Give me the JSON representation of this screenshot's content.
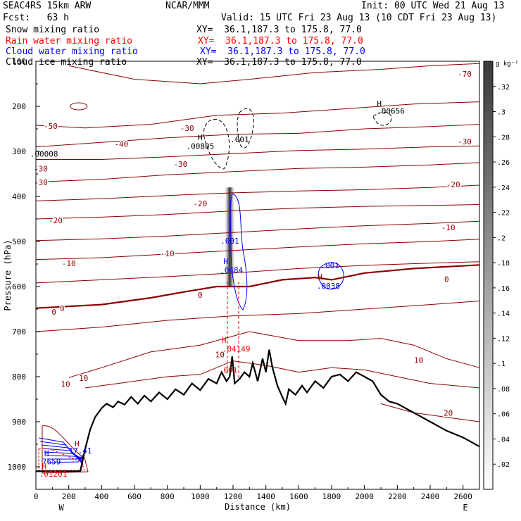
{
  "header": {
    "model": "SEAC4RS 15km ARW",
    "org": "NCAR/MMM",
    "init": "Init: 00 UTC Wed 21 Aug 13",
    "fcst": "Fcst:   63 h",
    "valid": "Valid: 15 UTC Fri 23 Aug 13 (10 CDT Fri 23 Aug 13)"
  },
  "fields": [
    {
      "name": "Snow mixing ratio",
      "xy": "",
      "color": "#000000"
    },
    {
      "name": "Rain water mixing ratio",
      "xy": "XY=  36.1,187.3 to 175.8, 77.0",
      "color": "#ff0000"
    },
    {
      "name": "Cloud water mixing ratio",
      "xy": "XY=  36.1,187.3 to 175.8, 77.0",
      "color": "#0000ff"
    },
    {
      "name": "Cloud ice mixing ratio",
      "xy": "XY=  36.1,187.3 to 175.8, 77.0",
      "color": "#000000"
    }
  ],
  "snow_xy": "XY=  36.1,187.3 to 175.8, 77.0",
  "colorbar": {
    "units": "g kg⁻¹",
    "ticks": [
      ".32",
      ".3",
      ".28",
      ".26",
      ".24",
      ".22",
      ".2",
      ".18",
      ".16",
      ".14",
      ".12",
      ".1",
      ".08",
      ".06",
      ".04",
      ".02"
    ]
  },
  "chart_data": {
    "type": "cross-section",
    "xlabel": "Distance (km)",
    "ylabel": "Pressure (hPa)",
    "xlim": [
      0,
      2700
    ],
    "ylim": [
      1050,
      100
    ],
    "x_ticks": [
      0,
      200,
      400,
      600,
      800,
      1000,
      1200,
      1400,
      1600,
      1800,
      2000,
      2200,
      2400,
      2600
    ],
    "y_ticks": [
      100,
      200,
      300,
      400,
      500,
      600,
      700,
      800,
      900,
      1000
    ],
    "y_tick_labels": [
      "100",
      "200",
      "300",
      "400",
      "500",
      "600",
      "700",
      "800",
      "900",
      "1000"
    ],
    "endpoint_labels": {
      "left": "W",
      "right": "E"
    },
    "terrain": [
      [
        0,
        1010
      ],
      [
        270,
        1010
      ],
      [
        300,
        960
      ],
      [
        330,
        918
      ],
      [
        360,
        890
      ],
      [
        400,
        870
      ],
      [
        430,
        860
      ],
      [
        470,
        868
      ],
      [
        500,
        855
      ],
      [
        540,
        862
      ],
      [
        580,
        845
      ],
      [
        620,
        860
      ],
      [
        660,
        842
      ],
      [
        700,
        855
      ],
      [
        750,
        835
      ],
      [
        800,
        850
      ],
      [
        850,
        828
      ],
      [
        900,
        840
      ],
      [
        950,
        815
      ],
      [
        1000,
        830
      ],
      [
        1050,
        805
      ],
      [
        1100,
        815
      ],
      [
        1130,
        790
      ],
      [
        1160,
        810
      ],
      [
        1180,
        800
      ],
      [
        1195,
        755
      ],
      [
        1210,
        815
      ],
      [
        1240,
        805
      ],
      [
        1270,
        790
      ],
      [
        1300,
        800
      ],
      [
        1320,
        770
      ],
      [
        1350,
        810
      ],
      [
        1380,
        760
      ],
      [
        1400,
        790
      ],
      [
        1420,
        740
      ],
      [
        1440,
        780
      ],
      [
        1470,
        820
      ],
      [
        1500,
        845
      ],
      [
        1520,
        860
      ],
      [
        1540,
        828
      ],
      [
        1580,
        840
      ],
      [
        1620,
        820
      ],
      [
        1650,
        835
      ],
      [
        1700,
        810
      ],
      [
        1750,
        825
      ],
      [
        1800,
        800
      ],
      [
        1850,
        795
      ],
      [
        1900,
        810
      ],
      [
        1950,
        790
      ],
      [
        2000,
        800
      ],
      [
        2050,
        810
      ],
      [
        2100,
        840
      ],
      [
        2150,
        855
      ],
      [
        2200,
        860
      ],
      [
        2300,
        880
      ],
      [
        2400,
        900
      ],
      [
        2500,
        920
      ],
      [
        2600,
        935
      ],
      [
        2700,
        955
      ]
    ],
    "isotherms": [
      {
        "label": "-70",
        "points": [
          [
            200,
            110
          ],
          [
            600,
            140
          ],
          [
            1000,
            150
          ],
          [
            1300,
            140
          ],
          [
            1700,
            125
          ],
          [
            2100,
            118
          ],
          [
            2400,
            110
          ],
          [
            2700,
            105
          ]
        ]
      },
      {
        "label": "-50",
        "points": [
          [
            0,
            242
          ],
          [
            300,
            248
          ],
          [
            700,
            240
          ],
          [
            1100,
            220
          ],
          [
            1500,
            215
          ],
          [
            1900,
            205
          ],
          [
            2300,
            195
          ],
          [
            2700,
            190
          ]
        ]
      },
      {
        "label": "-40",
        "points": [
          [
            0,
            290
          ],
          [
            400,
            280
          ],
          [
            800,
            270
          ],
          [
            1200,
            262
          ],
          [
            1600,
            260
          ],
          [
            2000,
            250
          ],
          [
            2400,
            245
          ],
          [
            2700,
            240
          ]
        ]
      },
      {
        "label": "-30",
        "points": [
          [
            0,
            318
          ],
          [
            400,
            318
          ],
          [
            800,
            312
          ],
          [
            1200,
            305
          ],
          [
            1600,
            298
          ],
          [
            2000,
            295
          ],
          [
            2400,
            290
          ],
          [
            2700,
            288
          ]
        ]
      },
      {
        "label": "-30",
        "points": [
          [
            0,
            368
          ],
          [
            400,
            362
          ],
          [
            800,
            352
          ],
          [
            1200,
            345
          ],
          [
            1600,
            338
          ],
          [
            2000,
            335
          ],
          [
            2400,
            330
          ],
          [
            2700,
            325
          ]
        ]
      },
      {
        "label": "-20",
        "points": [
          [
            0,
            410
          ],
          [
            400,
            405
          ],
          [
            800,
            398
          ],
          [
            1200,
            392
          ],
          [
            1600,
            388
          ],
          [
            2000,
            385
          ],
          [
            2400,
            380
          ],
          [
            2700,
            375
          ]
        ]
      },
      {
        "label": "-20",
        "points": [
          [
            0,
            450
          ],
          [
            400,
            446
          ],
          [
            800,
            440
          ],
          [
            1200,
            432
          ],
          [
            1600,
            426
          ],
          [
            2000,
            422
          ],
          [
            2400,
            420
          ],
          [
            2700,
            418
          ]
        ]
      },
      {
        "label": "-10",
        "points": [
          [
            0,
            498
          ],
          [
            400,
            494
          ],
          [
            800,
            488
          ],
          [
            1200,
            480
          ],
          [
            1600,
            472
          ],
          [
            2000,
            465
          ],
          [
            2400,
            460
          ],
          [
            2700,
            455
          ]
        ]
      },
      {
        "label": "-10",
        "points": [
          [
            0,
            540
          ],
          [
            400,
            536
          ],
          [
            800,
            528
          ],
          [
            1200,
            520
          ],
          [
            1600,
            512
          ],
          [
            2000,
            505
          ],
          [
            2400,
            500
          ],
          [
            2700,
            495
          ]
        ]
      },
      {
        "label": "0",
        "points": [
          [
            0,
            592
          ],
          [
            400,
            585
          ],
          [
            800,
            578
          ],
          [
            1200,
            570
          ],
          [
            1600,
            560
          ],
          [
            2000,
            553
          ],
          [
            2400,
            548
          ],
          [
            2700,
            545
          ]
        ]
      },
      {
        "label": "0",
        "points": [
          [
            0,
            648
          ],
          [
            400,
            640
          ],
          [
            700,
            625
          ],
          [
            900,
            612
          ],
          [
            1100,
            600
          ],
          [
            1300,
            600
          ],
          [
            1500,
            585
          ],
          [
            1700,
            580
          ],
          [
            1800,
            585
          ],
          [
            2000,
            570
          ],
          [
            2300,
            560
          ],
          [
            2700,
            552
          ]
        ]
      },
      {
        "label": "10",
        "points": [
          [
            0,
            700
          ],
          [
            400,
            690
          ],
          [
            800,
            675
          ],
          [
            1200,
            665
          ],
          [
            1600,
            660
          ],
          [
            2000,
            650
          ],
          [
            2400,
            640
          ],
          [
            2700,
            632
          ]
        ]
      },
      {
        "label": "10",
        "points": [
          [
            200,
            802
          ],
          [
            400,
            780
          ],
          [
            700,
            745
          ],
          [
            1000,
            730
          ],
          [
            1300,
            700
          ],
          [
            1600,
            720
          ],
          [
            1900,
            720
          ],
          [
            2100,
            715
          ],
          [
            2300,
            730
          ],
          [
            2500,
            760
          ],
          [
            2700,
            780
          ]
        ]
      },
      {
        "label": "10",
        "points": [
          [
            300,
            825
          ],
          [
            500,
            815
          ],
          [
            800,
            800
          ],
          [
            1000,
            795
          ],
          [
            1200,
            765
          ],
          [
            1400,
            775
          ],
          [
            1600,
            790
          ],
          [
            1800,
            780
          ],
          [
            2000,
            785
          ],
          [
            2200,
            800
          ],
          [
            2400,
            815
          ],
          [
            2700,
            825
          ]
        ]
      },
      {
        "label": "20",
        "points": [
          [
            2100,
            860
          ],
          [
            2300,
            880
          ],
          [
            2500,
            890
          ],
          [
            2700,
            900
          ]
        ]
      }
    ],
    "contour_labels": [
      {
        "text": "-70",
        "x": 2610,
        "y": 130,
        "color": "#8b0000"
      },
      {
        "text": "-50",
        "x": 90,
        "y": 245,
        "color": "#8b0000"
      },
      {
        "text": "-40",
        "x": 520,
        "y": 285,
        "color": "#8b0000"
      },
      {
        "text": "-30",
        "x": 920,
        "y": 250,
        "color": "#8b0000"
      },
      {
        "text": "-30",
        "x": 2610,
        "y": 280,
        "color": "#8b0000"
      },
      {
        "text": "-30",
        "x": 880,
        "y": 330,
        "color": "#8b0000"
      },
      {
        "text": "-30",
        "x": 30,
        "y": 340,
        "color": "#8b0000"
      },
      {
        "text": "-30",
        "x": 30,
        "y": 370,
        "color": "#8b0000"
      },
      {
        "text": "-20",
        "x": 2540,
        "y": 375,
        "color": "#8b0000"
      },
      {
        "text": "-20",
        "x": 1000,
        "y": 417,
        "color": "#8b0000"
      },
      {
        "text": "-20",
        "x": 120,
        "y": 455,
        "color": "#8b0000"
      },
      {
        "text": "-10",
        "x": 2510,
        "y": 470,
        "color": "#8b0000"
      },
      {
        "text": "-10",
        "x": 800,
        "y": 528,
        "color": "#8b0000"
      },
      {
        "text": "-10",
        "x": 200,
        "y": 550,
        "color": "#8b0000"
      },
      {
        "text": "0",
        "x": 2500,
        "y": 585,
        "color": "#8b0000"
      },
      {
        "text": "0",
        "x": 1000,
        "y": 620,
        "color": "#8b0000"
      },
      {
        "text": "0",
        "x": 160,
        "y": 650,
        "color": "#8b0000"
      },
      {
        "text": "0",
        "x": 110,
        "y": 658,
        "color": "#8b0000"
      },
      {
        "text": "10",
        "x": 1120,
        "y": 752,
        "color": "#8b0000"
      },
      {
        "text": "10",
        "x": 2330,
        "y": 765,
        "color": "#8b0000"
      },
      {
        "text": "10",
        "x": 290,
        "y": 805,
        "color": "#8b0000"
      },
      {
        "text": "10",
        "x": 180,
        "y": 818,
        "color": "#8b0000"
      },
      {
        "text": "20",
        "x": 2510,
        "y": 882,
        "color": "#8b0000"
      }
    ],
    "extrema_labels": [
      {
        "text": "H",
        "x": 2090,
        "y": 195,
        "color": "#000000"
      },
      {
        "text": ".00656",
        "x": 2160,
        "y": 212,
        "color": "#000000"
      },
      {
        "text": "H",
        "x": 1000,
        "y": 270,
        "color": "#000000"
      },
      {
        "text": ".00805",
        "x": 1000,
        "y": 290,
        "color": "#000000"
      },
      {
        "text": ".001",
        "x": 1240,
        "y": 275,
        "color": "#000000"
      },
      {
        "text": ".00008",
        "x": 50,
        "y": 307,
        "color": "#000000"
      },
      {
        "text": ".001",
        "x": 1180,
        "y": 500,
        "color": "#0000ff"
      },
      {
        "text": "H",
        "x": 1155,
        "y": 545,
        "color": "#0000ff"
      },
      {
        "text": ".0484",
        "x": 1190,
        "y": 565,
        "color": "#0000ff"
      },
      {
        "text": ".001",
        "x": 1790,
        "y": 555,
        "color": "#0000ff"
      },
      {
        "text": "H",
        "x": 1730,
        "y": 580,
        "color": "#8b0000"
      },
      {
        "text": ".0038",
        "x": 1780,
        "y": 600,
        "color": "#0000ff"
      },
      {
        "text": "H",
        "x": 1145,
        "y": 720,
        "color": "#ff0000"
      },
      {
        "text": ".04149",
        "x": 1220,
        "y": 740,
        "color": "#ff0000"
      },
      {
        "text": ".001",
        "x": 1170,
        "y": 787,
        "color": "#ff0000"
      },
      {
        "text": "H",
        "x": 250,
        "y": 950,
        "color": "#8b0000"
      },
      {
        "text": "17.41",
        "x": 270,
        "y": 966,
        "color": "#0000ff"
      },
      {
        "text": "H",
        "x": 65,
        "y": 971,
        "color": "#0000ff"
      },
      {
        "text": "7659",
        "x": 95,
        "y": 990,
        "color": "#0000ff"
      },
      {
        "text": "H",
        "x": 50,
        "y": 1000,
        "color": "#ff0000"
      },
      {
        "text": ".01201",
        "x": 105,
        "y": 1017,
        "color": "#ff0000"
      }
    ],
    "grid": false,
    "legend": "top-left"
  }
}
